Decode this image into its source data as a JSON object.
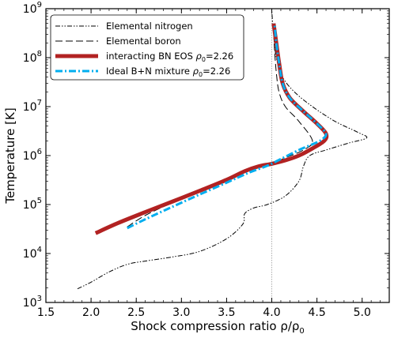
{
  "chart_data": {
    "type": "line",
    "xlabel": "Shock compression ratio ρ/ρ",
    "xlabel_sub": "0",
    "ylabel": "Temperature [K]",
    "xlim": [
      1.5,
      5.3
    ],
    "ylim": [
      1000,
      1000000000
    ],
    "yscale": "log",
    "x_ticks": [
      "1.5",
      "2.0",
      "2.5",
      "3.0",
      "3.5",
      "4.0",
      "4.5",
      "5.0"
    ],
    "y_ticks": [
      {
        "base": "10",
        "exp": "3"
      },
      {
        "base": "10",
        "exp": "4"
      },
      {
        "base": "10",
        "exp": "5"
      },
      {
        "base": "10",
        "exp": "6"
      },
      {
        "base": "10",
        "exp": "7"
      },
      {
        "base": "10",
        "exp": "8"
      },
      {
        "base": "10",
        "exp": "9"
      }
    ],
    "reference_line_x": 4.0,
    "legend_position": "upper-left",
    "grid": false,
    "series": [
      {
        "key": "nitrogen",
        "label_main": "Elemental nitrogen",
        "label_sub": "",
        "label_tail": "",
        "color": "#000000",
        "style": "dash-dot-dot",
        "x": [
          1.85,
          2.0,
          2.2,
          2.4,
          2.6,
          2.9,
          3.2,
          3.5,
          3.68,
          3.7,
          3.8,
          3.95,
          4.15,
          4.3,
          4.35,
          4.42,
          4.6,
          4.85,
          5.05,
          4.95,
          4.7,
          4.45,
          4.25,
          4.12,
          4.05,
          4.02,
          4.0
        ],
        "y": [
          1900,
          2600,
          4200,
          6000,
          7000,
          8500,
          11000,
          20000,
          40000,
          65000,
          85000,
          100000,
          150000,
          300000,
          600000,
          1000000,
          1300000,
          1800000,
          2300000,
          3000000,
          5000000,
          10000000,
          20000000,
          40000000,
          100000000,
          300000000,
          900000000
        ]
      },
      {
        "key": "boron",
        "label_main": "Elemental boron",
        "label_sub": "",
        "label_tail": "",
        "color": "#000000",
        "style": "long-dash",
        "x": [
          2.4,
          2.6,
          2.9,
          3.2,
          3.5,
          3.7,
          3.85,
          4.0,
          4.15,
          4.35,
          4.45,
          4.3,
          4.15,
          4.08,
          4.05,
          4.03,
          4.02
        ],
        "y": [
          35000,
          60000,
          110000,
          200000,
          330000,
          480000,
          600000,
          700000,
          900000,
          1300000,
          2000000,
          5000000,
          10000000,
          20000000,
          50000000,
          150000000,
          400000000
        ]
      },
      {
        "key": "interacting",
        "label_main": "interacting BN EOS ",
        "label_sub": "0",
        "label_tail": "=2.26",
        "color": "#b22222",
        "style": "solid-thick",
        "x": [
          2.05,
          2.3,
          2.6,
          2.9,
          3.2,
          3.5,
          3.7,
          3.85,
          4.0,
          4.15,
          4.3,
          4.45,
          4.58,
          4.6,
          4.5,
          4.35,
          4.2,
          4.12,
          4.08,
          4.05,
          4.02
        ],
        "y": [
          26000,
          42000,
          70000,
          115000,
          190000,
          320000,
          480000,
          600000,
          680000,
          800000,
          1000000,
          1400000,
          2000000,
          2800000,
          4500000,
          8000000,
          15000000,
          30000000,
          80000000,
          200000000,
          500000000
        ]
      },
      {
        "key": "ideal",
        "label_main": "Ideal B+N mixture  ",
        "label_sub": "0",
        "label_tail": "=2.26",
        "color": "#00aeef",
        "style": "dash-dot-thick",
        "x": [
          2.4,
          2.6,
          2.9,
          3.2,
          3.5,
          3.75,
          3.95,
          4.1,
          4.3,
          4.45,
          4.55,
          4.6,
          4.5,
          4.35,
          4.2,
          4.12,
          4.08,
          4.05,
          4.03
        ],
        "y": [
          33000,
          50000,
          90000,
          160000,
          280000,
          450000,
          620000,
          850000,
          1300000,
          1700000,
          2100000,
          2800000,
          4500000,
          8000000,
          15000000,
          30000000,
          80000000,
          200000000,
          500000000
        ]
      }
    ]
  }
}
